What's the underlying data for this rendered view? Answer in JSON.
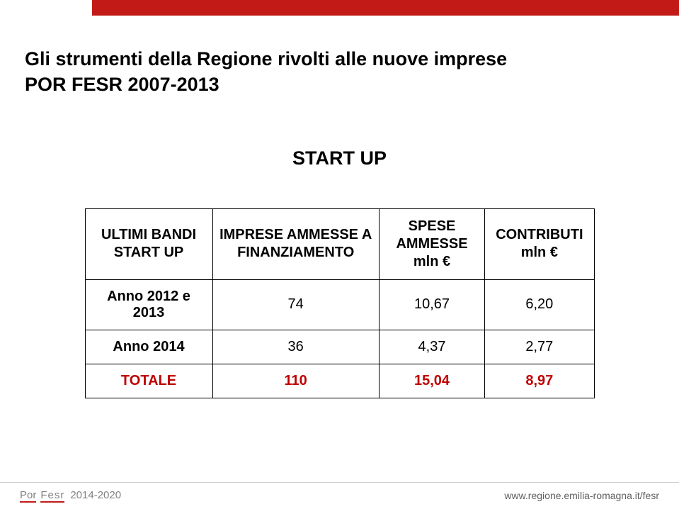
{
  "colors": {
    "red_band": "#c21b17",
    "text_black": "#000000",
    "total_red": "#c00000",
    "footer_grey": "#818181",
    "footer_right_grey": "#5f5f5f",
    "divider": "#cfcfcf",
    "border": "#000000",
    "background": "#ffffff"
  },
  "typography": {
    "title_fontsize": 27,
    "subtitle_fontsize": 27,
    "table_fontsize": 20,
    "footer_fontsize": 15,
    "footer_url_fontsize": 14,
    "font_family": "Arial"
  },
  "title": {
    "line1": "Gli strumenti della Regione rivolti alle nuove imprese",
    "line2": "POR FESR 2007-2013"
  },
  "subtitle": "START UP",
  "table": {
    "type": "table",
    "columns": [
      "ULTIMI BANDI START UP",
      "IMPRESE AMMESSE A FINANZIAMENTO",
      "SPESE AMMESSE mln €",
      "CONTRIBUTI mln €"
    ],
    "col_widths_pct": [
      25,
      30,
      23,
      22
    ],
    "rows": [
      {
        "label": "Anno 2012 e 2013",
        "values": [
          "74",
          "10,67",
          "6,20"
        ]
      },
      {
        "label": "Anno 2014",
        "values": [
          "36",
          "4,37",
          "2,77"
        ]
      }
    ],
    "total_row": {
      "label": "TOTALE",
      "values": [
        "110",
        "15,04",
        "8,97"
      ]
    }
  },
  "footer": {
    "program_1": "Por",
    "program_2": "Fesr",
    "years": "2014-2020",
    "url": "www.regione.emilia-romagna.it/fesr"
  }
}
